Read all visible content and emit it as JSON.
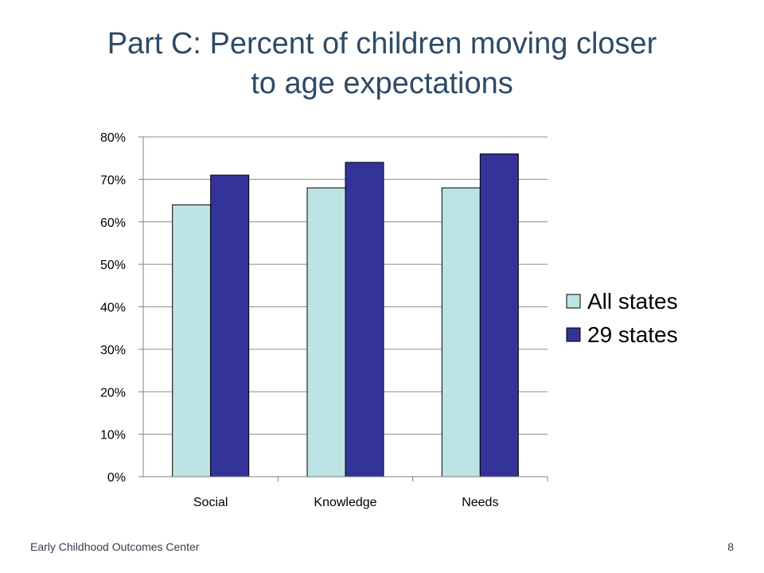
{
  "slide": {
    "title_line1": "Part C: Percent of children moving closer",
    "title_line2": "to age expectations",
    "footer_left": "Early Childhood Outcomes Center",
    "page_number": "8"
  },
  "colors": {
    "all_states": "#bde3e5",
    "states_29": "#333399",
    "gridline": "#8c8c8c",
    "title": "#2e4a66"
  },
  "chart_data": {
    "type": "bar",
    "title": "Part C: Percent of children moving closer to age expectations",
    "xlabel": "",
    "ylabel": "",
    "categories": [
      "Social",
      "Knowledge",
      "Needs"
    ],
    "series": [
      {
        "name": "All states",
        "values": [
          64,
          68,
          68
        ]
      },
      {
        "name": "29 states",
        "values": [
          71,
          74,
          76
        ]
      }
    ],
    "ylim": [
      0,
      80
    ],
    "yticks": [
      0,
      10,
      20,
      30,
      40,
      50,
      60,
      70,
      80
    ],
    "ytick_labels": [
      "0%",
      "10%",
      "20%",
      "30%",
      "40%",
      "50%",
      "60%",
      "70%",
      "80%"
    ],
    "grid": true,
    "legend_position": "right"
  }
}
